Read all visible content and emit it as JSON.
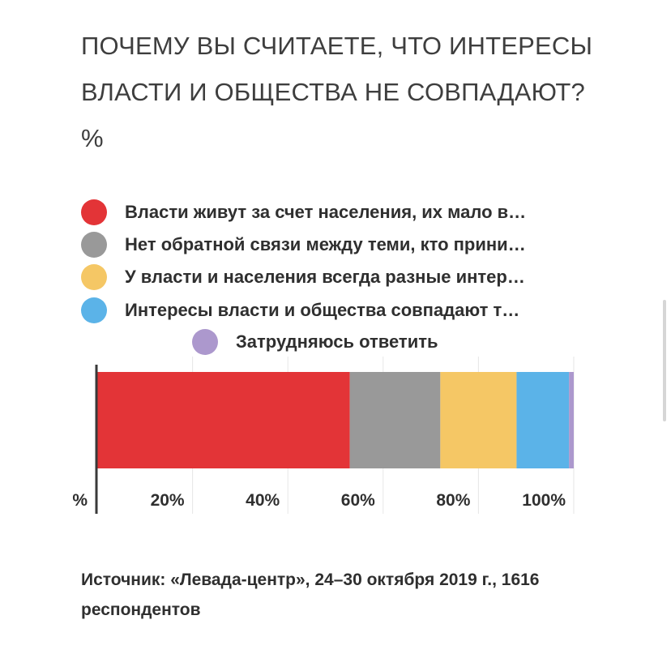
{
  "title": "ПОЧЕМУ ВЫ СЧИТАЕТЕ, ЧТО ИНТЕРЕСЫ ВЛАСТИ И ОБЩЕСТВА НЕ СОВПАДАЮТ? %",
  "legend": [
    {
      "label": "Власти живут за счет населения, их мало в…",
      "color": "#e33437"
    },
    {
      "label": "Нет обратной связи между теми, кто прини…",
      "color": "#999999"
    },
    {
      "label": "У власти и населения всегда разные интер…",
      "color": "#f5c765"
    },
    {
      "label": "Интересы власти и общества совпадают т…",
      "color": "#5bb3e8"
    },
    {
      "label": "Затрудняюсь ответить",
      "color": "#ac98cd"
    }
  ],
  "chart_data": {
    "type": "bar",
    "orientation": "horizontal",
    "stacked": true,
    "categories": [
      ""
    ],
    "series": [
      {
        "name": "Власти живут за счет населения, их мало в…",
        "values": [
          53
        ]
      },
      {
        "name": "Нет обратной связи между теми, кто прини…",
        "values": [
          19
        ]
      },
      {
        "name": "У власти и населения всегда разные интер…",
        "values": [
          16
        ]
      },
      {
        "name": "Интересы власти и общества совпадают т…",
        "values": [
          11
        ]
      },
      {
        "name": "Затрудняюсь ответить",
        "values": [
          1
        ]
      }
    ],
    "colors": [
      "#e33437",
      "#999999",
      "#f5c765",
      "#5bb3e8",
      "#ac98cd"
    ],
    "xlim": [
      0,
      100
    ],
    "x_ticks": [
      "%",
      "20%",
      "40%",
      "60%",
      "80%",
      "100%"
    ],
    "x_tick_values": [
      0,
      20,
      40,
      60,
      80,
      100
    ],
    "grid": true,
    "legend_position": "top"
  },
  "source": "Источник: «Левада-центр», 24–30 октября 2019 г., 1616 респондентов"
}
